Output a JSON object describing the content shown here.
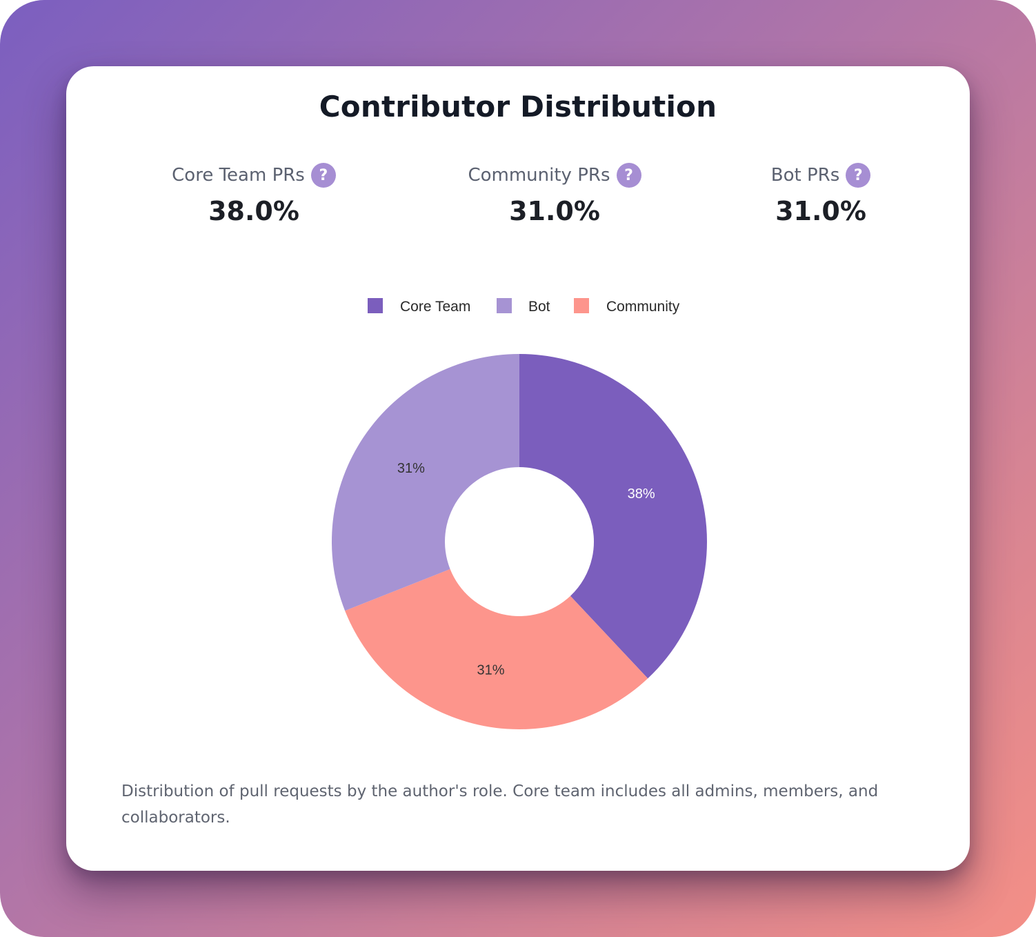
{
  "card": {
    "title": "Contributor Distribution",
    "caption": "Distribution of pull requests by the author's role. Core team includes all admins, members, and collaborators."
  },
  "stats": [
    {
      "label": "Core Team PRs",
      "value": "38.0%",
      "help": "?"
    },
    {
      "label": "Community PRs",
      "value": "31.0%",
      "help": "?"
    },
    {
      "label": "Bot PRs",
      "value": "31.0%",
      "help": "?"
    }
  ],
  "icons": {
    "help": "question-mark-icon"
  },
  "colors": {
    "core": "#7b5ebd",
    "bot": "#a693d3",
    "community": "#fd958c",
    "help_icon": "#a68ed3"
  },
  "chart_data": {
    "type": "pie",
    "donut": true,
    "title": "",
    "legend_position": "top",
    "legend": [
      "Core Team",
      "Bot",
      "Community"
    ],
    "slices": [
      {
        "name": "Core Team",
        "value": 38,
        "label": "38%",
        "color": "#7b5ebd",
        "label_color": "#ffffff"
      },
      {
        "name": "Community",
        "value": 31,
        "label": "31%",
        "color": "#fd958c",
        "label_color": "#333333"
      },
      {
        "name": "Bot",
        "value": 31,
        "label": "31%",
        "color": "#a693d3",
        "label_color": "#333333"
      }
    ]
  }
}
